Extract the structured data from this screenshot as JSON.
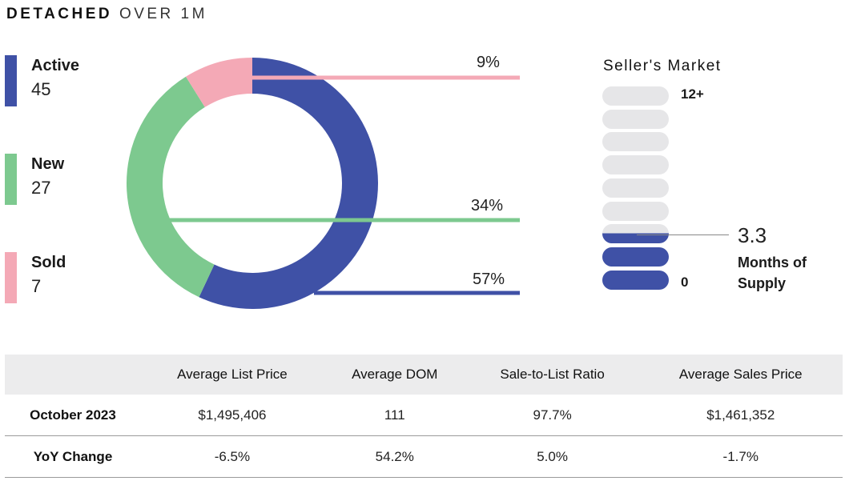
{
  "title": {
    "bold": "DETACHED",
    "light": "OVER 1M"
  },
  "colors": {
    "active": "#3f51a6",
    "new": "#7dc98f",
    "sold": "#f4a9b6",
    "empty": "#e6e6e8"
  },
  "legend": [
    {
      "label": "Active",
      "value": "45"
    },
    {
      "label": "New",
      "value": "27"
    },
    {
      "label": "Sold",
      "value": "7"
    }
  ],
  "chart_data": {
    "type": "pie",
    "style": "donut",
    "categories": [
      "Active",
      "New",
      "Sold"
    ],
    "values": [
      45,
      27,
      7
    ],
    "percent_labels": [
      "57%",
      "34%",
      "9%"
    ]
  },
  "market": {
    "title": "Seller's Market",
    "scale_max": "12+",
    "scale_min": "0",
    "months_of_supply": 3.3,
    "months_of_supply_text": "3.3",
    "months_label": "Months of Supply"
  },
  "table": {
    "headers": [
      "",
      "Average List Price",
      "Average DOM",
      "Sale-to-List Ratio",
      "Average Sales Price"
    ],
    "rows": [
      {
        "label": "October 2023",
        "cells": [
          "$1,495,406",
          "111",
          "97.7%",
          "$1,461,352"
        ]
      },
      {
        "label": "YoY Change",
        "cells": [
          "-6.5%",
          "54.2%",
          "5.0%",
          "-1.7%"
        ]
      }
    ]
  }
}
